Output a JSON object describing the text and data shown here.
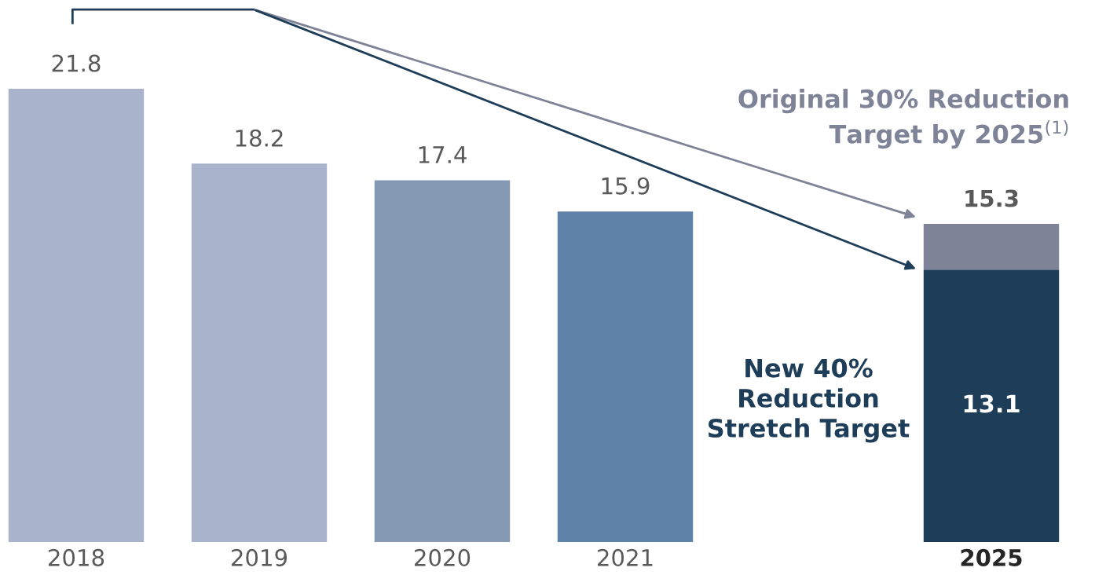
{
  "chart_data": {
    "type": "bar",
    "stacked": true,
    "categories": [
      "2018",
      "2019",
      "2020",
      "2021",
      null,
      "2025"
    ],
    "series": [
      {
        "colors": [
          "#a9b4cc",
          "#a9b4cc",
          "#8599b5",
          "#5f83a8",
          "#5f83a8",
          "#1e3d59"
        ],
        "values": [
          21.8,
          18.2,
          17.4,
          15.9,
          null,
          13.1
        ],
        "value_labels": [
          "21.8",
          "18.2",
          "17.4",
          "15.9",
          null,
          "13.1"
        ]
      },
      {
        "color": "#7f8398",
        "values": [
          null,
          null,
          null,
          null,
          null,
          2.2
        ]
      }
    ],
    "totals": [
      null,
      null,
      null,
      null,
      null,
      "15.3"
    ],
    "annotations": [
      "Original 30% Reduction\nTarget by 2025$^{(1)}$",
      "New 40%\nReduction\nStretch Target"
    ],
    "tick_labels": "x",
    "grid": false
  }
}
